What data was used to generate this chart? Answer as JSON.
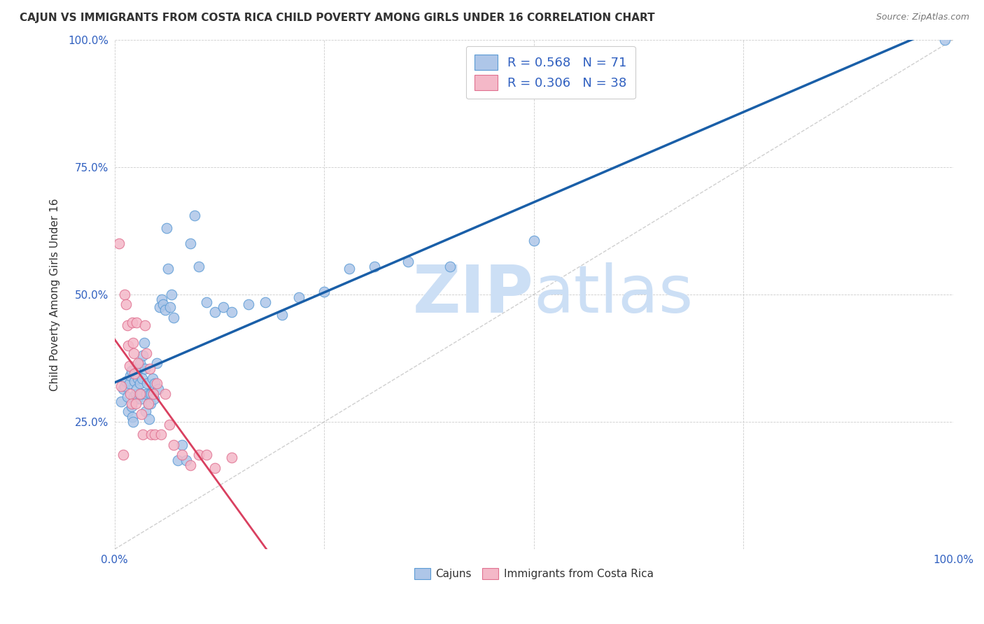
{
  "title": "CAJUN VS IMMIGRANTS FROM COSTA RICA CHILD POVERTY AMONG GIRLS UNDER 16 CORRELATION CHART",
  "source": "Source: ZipAtlas.com",
  "ylabel": "Child Poverty Among Girls Under 16",
  "xlim": [
    0,
    1
  ],
  "ylim": [
    0,
    1
  ],
  "cajun_color": "#aec6e8",
  "cajun_edge_color": "#5b9bd5",
  "costa_rica_color": "#f4b8c8",
  "costa_rica_edge_color": "#e07090",
  "trendline_cajun_color": "#1a5fa8",
  "trendline_costa_rica_color": "#d94060",
  "diagonal_color": "#b0b0b0",
  "R_cajun": 0.568,
  "N_cajun": 71,
  "R_costa_rica": 0.306,
  "N_costa_rica": 38,
  "watermark_zip": "ZIP",
  "watermark_atlas": "atlas",
  "watermark_color": "#ccdff5",
  "legend_label_cajun": "Cajuns",
  "legend_label_costa_rica": "Immigrants from Costa Rica",
  "value_color": "#3060c0",
  "label_color": "#333333",
  "tick_color": "#3060c0",
  "cajun_scatter_x": [
    0.008,
    0.01,
    0.012,
    0.014,
    0.015,
    0.016,
    0.018,
    0.019,
    0.02,
    0.02,
    0.021,
    0.022,
    0.023,
    0.024,
    0.025,
    0.026,
    0.027,
    0.028,
    0.029,
    0.03,
    0.03,
    0.031,
    0.032,
    0.033,
    0.034,
    0.035,
    0.036,
    0.037,
    0.038,
    0.039,
    0.04,
    0.041,
    0.042,
    0.043,
    0.044,
    0.045,
    0.046,
    0.047,
    0.048,
    0.05,
    0.052,
    0.054,
    0.056,
    0.058,
    0.06,
    0.062,
    0.064,
    0.066,
    0.068,
    0.07,
    0.075,
    0.08,
    0.085,
    0.09,
    0.095,
    0.1,
    0.11,
    0.12,
    0.13,
    0.14,
    0.16,
    0.18,
    0.2,
    0.22,
    0.25,
    0.28,
    0.31,
    0.35,
    0.4,
    0.5,
    0.99
  ],
  "cajun_scatter_y": [
    0.29,
    0.315,
    0.32,
    0.33,
    0.3,
    0.27,
    0.325,
    0.34,
    0.35,
    0.28,
    0.26,
    0.25,
    0.3,
    0.33,
    0.305,
    0.315,
    0.295,
    0.335,
    0.355,
    0.365,
    0.325,
    0.295,
    0.305,
    0.335,
    0.38,
    0.405,
    0.355,
    0.27,
    0.305,
    0.325,
    0.285,
    0.255,
    0.305,
    0.285,
    0.305,
    0.335,
    0.305,
    0.295,
    0.325,
    0.365,
    0.315,
    0.475,
    0.49,
    0.48,
    0.47,
    0.63,
    0.55,
    0.475,
    0.5,
    0.455,
    0.175,
    0.205,
    0.175,
    0.6,
    0.655,
    0.555,
    0.485,
    0.465,
    0.475,
    0.465,
    0.48,
    0.485,
    0.46,
    0.495,
    0.505,
    0.55,
    0.555,
    0.565,
    0.555,
    0.605,
    1.0
  ],
  "costa_rica_scatter_x": [
    0.005,
    0.008,
    0.01,
    0.012,
    0.014,
    0.015,
    0.016,
    0.018,
    0.019,
    0.02,
    0.021,
    0.022,
    0.023,
    0.024,
    0.025,
    0.026,
    0.028,
    0.03,
    0.032,
    0.034,
    0.036,
    0.038,
    0.04,
    0.042,
    0.044,
    0.046,
    0.048,
    0.05,
    0.055,
    0.06,
    0.065,
    0.07,
    0.08,
    0.09,
    0.1,
    0.11,
    0.12,
    0.14
  ],
  "costa_rica_scatter_y": [
    0.6,
    0.32,
    0.185,
    0.5,
    0.48,
    0.44,
    0.4,
    0.36,
    0.305,
    0.285,
    0.445,
    0.405,
    0.385,
    0.345,
    0.285,
    0.445,
    0.365,
    0.305,
    0.265,
    0.225,
    0.44,
    0.385,
    0.285,
    0.355,
    0.225,
    0.305,
    0.225,
    0.325,
    0.225,
    0.305,
    0.245,
    0.205,
    0.185,
    0.165,
    0.185,
    0.185,
    0.16,
    0.18
  ]
}
